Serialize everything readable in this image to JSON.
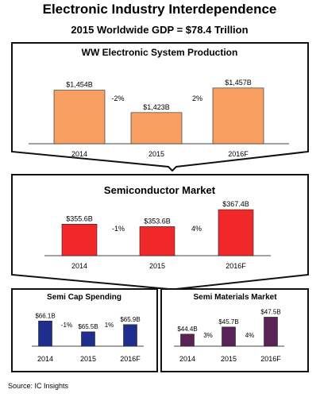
{
  "title": "Electronic Industry Interdependence",
  "subtitle": "2015 Worldwide GDP = $78.4 Trillion",
  "source": "Source:  IC Insights",
  "colors": {
    "electronic": "#F7A061",
    "semiconductor": "#F0282A",
    "semi_cap": "#1F2E8E",
    "semi_materials": "#5A2358",
    "frame": "#111111"
  },
  "chart_data": [
    {
      "id": "electronic",
      "type": "bar",
      "title": "WW Electronic System Production",
      "categories": [
        "2014",
        "2015",
        "2016F"
      ],
      "values": [
        1454,
        1423,
        1457
      ],
      "value_labels": [
        "$1,454B",
        "$1,423B",
        "$1,457B"
      ],
      "changes": [
        "-2%",
        "2%"
      ],
      "ylim": [
        1380,
        1470
      ],
      "unit": "$B"
    },
    {
      "id": "semiconductor",
      "type": "bar",
      "title": "Semiconductor Market",
      "categories": [
        "2014",
        "2015",
        "2016F"
      ],
      "values": [
        355.6,
        353.6,
        367.4
      ],
      "value_labels": [
        "$355.6B",
        "$353.6B",
        "$367.4B"
      ],
      "changes": [
        "-1%",
        "4%"
      ],
      "ylim": [
        330,
        370
      ],
      "unit": "$B"
    },
    {
      "id": "semi_cap",
      "type": "bar",
      "title": "Semi Cap Spending",
      "categories": [
        "2014",
        "2015",
        "2016F"
      ],
      "values": [
        66.1,
        65.5,
        65.9
      ],
      "value_labels": [
        "$66.1B",
        "$65.5B",
        "$65.9B"
      ],
      "changes": [
        "-1%",
        "1%"
      ],
      "ylim": [
        64.7,
        66.2
      ],
      "unit": "$B"
    },
    {
      "id": "semi_materials",
      "type": "bar",
      "title": "Semi Materials Market",
      "categories": [
        "2014",
        "2015",
        "2016F"
      ],
      "values": [
        44.4,
        45.7,
        47.5
      ],
      "value_labels": [
        "$44.4B",
        "$45.7B",
        "$47.5B"
      ],
      "changes": [
        "3%",
        "4%"
      ],
      "ylim": [
        42.2,
        48.0
      ],
      "unit": "$B"
    }
  ]
}
